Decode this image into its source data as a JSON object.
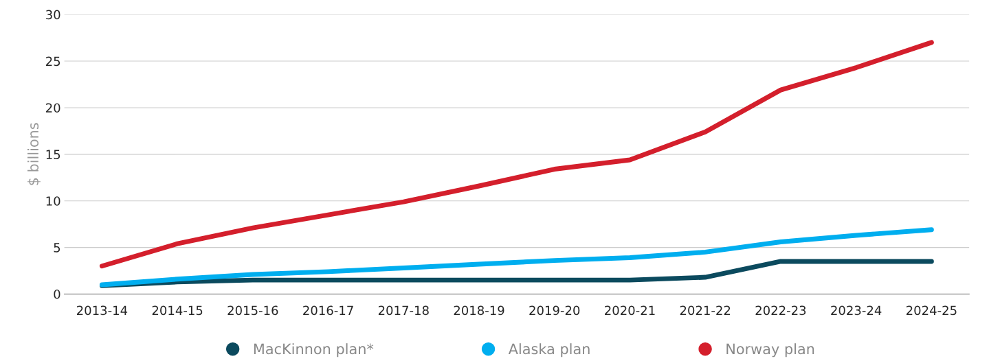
{
  "chart_data": {
    "type": "line",
    "ylabel": "$ billions",
    "categories": [
      "2013-14",
      "2014-15",
      "2015-16",
      "2016-17",
      "2017-18",
      "2018-19",
      "2019-20",
      "2020-21",
      "2021-22",
      "2022-23",
      "2023-24",
      "2024-25"
    ],
    "series": [
      {
        "name": "MacKinnon plan*",
        "color": "#0b4a5e",
        "values": [
          0.9,
          1.3,
          1.5,
          1.5,
          1.5,
          1.5,
          1.5,
          1.5,
          1.8,
          3.5,
          3.5,
          3.5
        ]
      },
      {
        "name": "Alaska plan",
        "color": "#00aeef",
        "values": [
          1.0,
          1.6,
          2.1,
          2.4,
          2.8,
          3.2,
          3.6,
          3.9,
          4.5,
          5.6,
          6.3,
          6.9
        ]
      },
      {
        "name": "Norway plan",
        "color": "#d41f2c",
        "values": [
          3.0,
          5.4,
          7.1,
          8.5,
          9.9,
          11.6,
          13.4,
          14.4,
          17.4,
          21.9,
          24.3,
          27.0
        ]
      }
    ],
    "ylim": [
      0,
      30
    ],
    "yticks": [
      0,
      5,
      10,
      15,
      20,
      25,
      30
    ],
    "grid": "y",
    "legend": "bottom",
    "line_style": "solid"
  }
}
